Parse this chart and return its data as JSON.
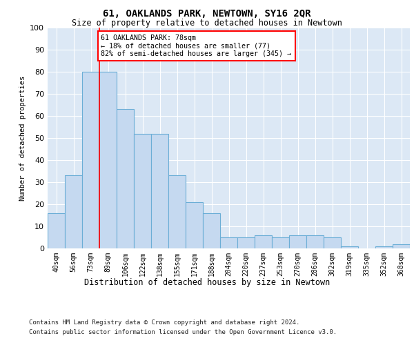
{
  "title": "61, OAKLANDS PARK, NEWTOWN, SY16 2QR",
  "subtitle": "Size of property relative to detached houses in Newtown",
  "xlabel": "Distribution of detached houses by size in Newtown",
  "ylabel": "Number of detached properties",
  "bar_values": [
    16,
    33,
    80,
    80,
    63,
    52,
    52,
    33,
    21,
    16,
    5,
    5,
    6,
    5,
    6,
    6,
    5,
    1,
    0,
    1,
    2
  ],
  "categories": [
    "40sqm",
    "56sqm",
    "73sqm",
    "89sqm",
    "106sqm",
    "122sqm",
    "138sqm",
    "155sqm",
    "171sqm",
    "188sqm",
    "204sqm",
    "220sqm",
    "237sqm",
    "253sqm",
    "270sqm",
    "286sqm",
    "302sqm",
    "319sqm",
    "335sqm",
    "352sqm",
    "368sqm"
  ],
  "bar_color": "#c5d9f0",
  "bar_edge_color": "#6baed6",
  "marker_color": "red",
  "annotation_text": "61 OAKLANDS PARK: 78sqm\n← 18% of detached houses are smaller (77)\n82% of semi-detached houses are larger (345) →",
  "ylim": [
    0,
    100
  ],
  "yticks": [
    0,
    10,
    20,
    30,
    40,
    50,
    60,
    70,
    80,
    90,
    100
  ],
  "footer1": "Contains HM Land Registry data © Crown copyright and database right 2024.",
  "footer2": "Contains public sector information licensed under the Open Government Licence v3.0.",
  "plot_background": "#dce8f5"
}
